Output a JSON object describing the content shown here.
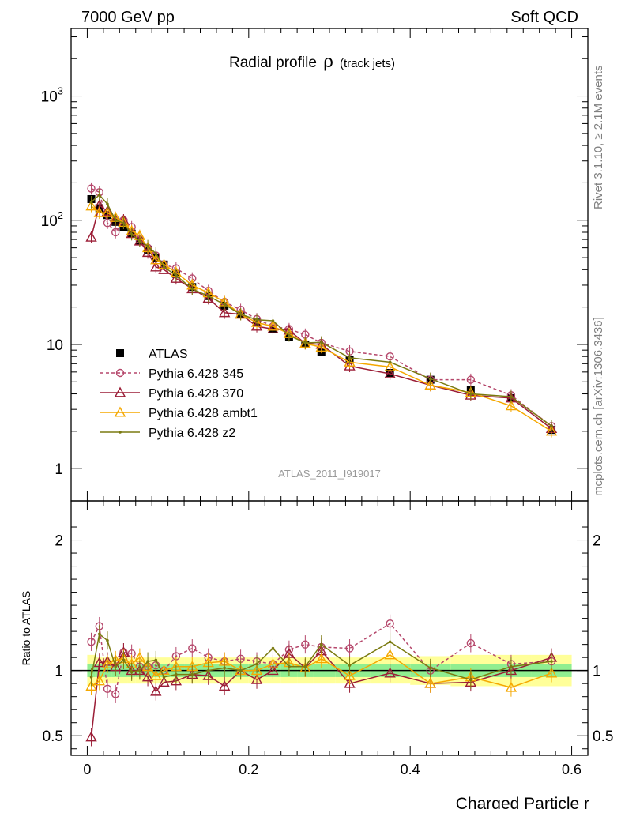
{
  "header": {
    "left": "7000 GeV pp",
    "right": "Soft QCD"
  },
  "side_text": {
    "rivet": "Rivet 3.1.10, ≥ 2.1M events",
    "mcplots": "mcplots.cern.ch [arXiv:1306.3436]"
  },
  "watermark": "ATLAS_2011_I919017",
  "chart_data": [
    {
      "type": "scatter",
      "title": "Radial profile",
      "title_symbol": "ρ",
      "subtitle": "(track jets)",
      "yscale": "log",
      "xlim": [
        -0.02,
        0.62
      ],
      "ylim": [
        0.55,
        3500
      ],
      "ytick_labels": [
        "1",
        "10",
        "10",
        "10"
      ],
      "ytick_exponents": [
        "",
        "",
        "2",
        "3"
      ],
      "legend_position": "bottom-left",
      "x": [
        0.005,
        0.015,
        0.025,
        0.035,
        0.045,
        0.055,
        0.065,
        0.075,
        0.085,
        0.095,
        0.11,
        0.13,
        0.15,
        0.17,
        0.19,
        0.21,
        0.23,
        0.25,
        0.27,
        0.29,
        0.325,
        0.375,
        0.425,
        0.475,
        0.525,
        0.575
      ],
      "series": [
        {
          "name": "ATLAS",
          "color": "#000000",
          "marker": "square",
          "line": "none",
          "values": [
            148,
            125,
            110,
            97,
            88,
            78,
            68,
            58,
            50,
            44,
            37,
            29,
            24.5,
            20.5,
            17.5,
            15,
            13.3,
            11.5,
            10,
            8.7,
            7.5,
            5.9,
            5.2,
            4.3,
            3.7,
            2.05
          ]
        },
        {
          "name": "Pythia 6.428 345",
          "color": "#b5476b",
          "marker": "circle",
          "line": "dashed",
          "values": [
            180,
            168,
            95,
            80,
            100,
            88,
            70,
            60,
            52,
            44,
            41,
            34,
            27,
            22,
            19,
            16,
            14,
            13.3,
            12,
            10.3,
            8.8,
            8,
            5.2,
            5.2,
            3.9,
            2.2
          ]
        },
        {
          "name": "Pythia 6.428 370",
          "color": "#9b1d36",
          "marker": "triangle",
          "line": "solid",
          "values": [
            73,
            132,
            118,
            100,
            100,
            78,
            68,
            55,
            42,
            40,
            34,
            28,
            23.5,
            18,
            17.5,
            14,
            13.3,
            13,
            10.2,
            10,
            6.7,
            5.8,
            4.7,
            3.9,
            3.7,
            2.1
          ]
        },
        {
          "name": "Pythia 6.428 ambt1",
          "color": "#f5a800",
          "marker": "triangle",
          "line": "solid",
          "values": [
            130,
            115,
            115,
            105,
            96,
            82,
            75,
            60,
            48,
            44,
            38,
            30,
            26,
            22,
            17.5,
            15,
            14,
            12.2,
            10.2,
            9.5,
            7.2,
            6.6,
            4.7,
            4.1,
            3.2,
            2.0
          ]
        },
        {
          "name": "Pythia 6.428 z2",
          "color": "#7a7a10",
          "marker": "dot",
          "line": "solid",
          "values": [
            140,
            160,
            135,
            100,
            95,
            77,
            68,
            62,
            54,
            42,
            36,
            28,
            24.5,
            21,
            17.5,
            15.8,
            15.5,
            11.8,
            10.3,
            10.4,
            7.8,
            7.2,
            5.3,
            4.0,
            3.8,
            2.2
          ]
        }
      ]
    },
    {
      "type": "line",
      "xlabel": "Charged Particle r",
      "ylabel": "Ratio to ATLAS",
      "xlim": [
        -0.02,
        0.62
      ],
      "ylim": [
        0.35,
        2.3
      ],
      "xtick_labels": [
        "0",
        "0.2",
        "0.4",
        "0.6"
      ],
      "ytick_labels": [
        "0.5",
        "1",
        "2"
      ],
      "bands": {
        "inner_color": "#90ee90",
        "outer_color": "#ffff99",
        "inner_half_width": [
          0.05,
          0.05,
          0.05,
          0.05,
          0.05,
          0.05,
          0.05,
          0.05,
          0.05,
          0.05,
          0.05,
          0.05,
          0.05,
          0.05,
          0.05,
          0.05,
          0.05,
          0.05,
          0.05,
          0.05,
          0.05,
          0.05,
          0.05,
          0.05,
          0.05,
          0.05
        ],
        "outer_half_width": [
          0.12,
          0.1,
          0.1,
          0.1,
          0.1,
          0.1,
          0.1,
          0.1,
          0.1,
          0.1,
          0.1,
          0.1,
          0.1,
          0.1,
          0.1,
          0.1,
          0.1,
          0.1,
          0.1,
          0.1,
          0.1,
          0.1,
          0.11,
          0.12,
          0.12,
          0.12
        ]
      },
      "series": [
        {
          "name": "Pythia 6.428 345",
          "values": [
            1.22,
            1.34,
            0.86,
            0.82,
            1.14,
            1.13,
            1.03,
            1.03,
            1.04,
            1.0,
            1.11,
            1.17,
            1.1,
            1.07,
            1.09,
            1.07,
            1.05,
            1.16,
            1.2,
            1.18,
            1.17,
            1.36,
            1.0,
            1.21,
            1.05,
            1.07
          ]
        },
        {
          "name": "Pythia 6.428 370",
          "values": [
            0.49,
            1.06,
            1.07,
            1.03,
            1.14,
            1.0,
            1.0,
            0.95,
            0.84,
            0.91,
            0.92,
            0.97,
            0.96,
            0.88,
            1.0,
            0.93,
            1.0,
            1.13,
            1.02,
            1.15,
            0.9,
            0.98,
            0.9,
            0.91,
            1.0,
            1.1
          ]
        },
        {
          "name": "Pythia 6.428 ambt1",
          "values": [
            0.88,
            0.92,
            1.05,
            1.08,
            1.09,
            1.05,
            1.1,
            1.03,
            0.96,
            1.0,
            1.03,
            1.03,
            1.06,
            1.07,
            1.0,
            1.0,
            1.05,
            1.06,
            1.02,
            1.09,
            0.96,
            1.12,
            0.9,
            0.95,
            0.87,
            0.98
          ]
        },
        {
          "name": "Pythia 6.428 z2",
          "values": [
            0.95,
            1.28,
            1.23,
            1.03,
            1.08,
            0.99,
            1.0,
            1.07,
            1.08,
            0.95,
            0.97,
            0.97,
            1.0,
            1.02,
            1.0,
            1.05,
            1.17,
            1.03,
            1.03,
            1.2,
            1.04,
            1.22,
            1.02,
            0.93,
            1.03,
            1.07
          ]
        }
      ]
    }
  ]
}
